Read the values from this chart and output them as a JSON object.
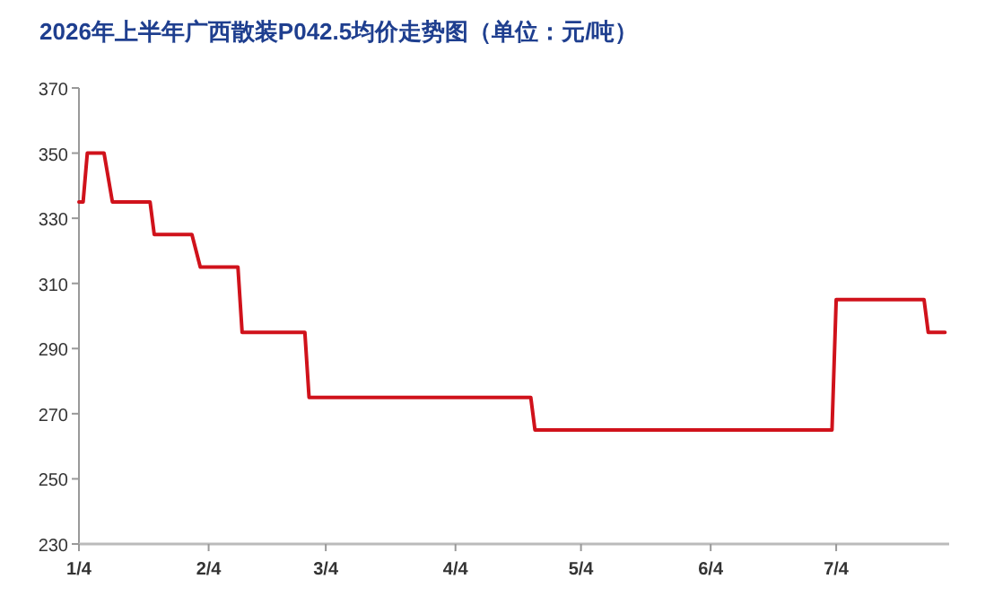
{
  "chart_data": {
    "type": "line",
    "title": "2026年上半年广西散装P042.5均价走势图（单位：元/吨）",
    "x": [
      "2026-01-04",
      "2026-01-05",
      "2026-01-06",
      "2026-01-10",
      "2026-01-12",
      "2026-01-21",
      "2026-01-22",
      "2026-01-31",
      "2026-02-02",
      "2026-02-11",
      "2026-02-12",
      "2026-02-27",
      "2026-02-28",
      "2026-04-22",
      "2026-04-23",
      "2026-07-03",
      "2026-07-04",
      "2026-07-25",
      "2026-07-26",
      "2026-07-30"
    ],
    "series": [
      {
        "color": "#d0121b",
        "values": [
          335,
          335,
          350,
          350,
          335,
          335,
          325,
          325,
          315,
          315,
          295,
          295,
          275,
          275,
          265,
          265,
          305,
          305,
          295,
          295
        ]
      }
    ],
    "xlim": [
      "2026-01-04",
      "2026-07-31"
    ],
    "xticks": [
      {
        "value": "2026-01-04",
        "label": "1/4"
      },
      {
        "value": "2026-02-04",
        "label": "2/4"
      },
      {
        "value": "2026-03-04",
        "label": "3/4"
      },
      {
        "value": "2026-04-04",
        "label": "4/4"
      },
      {
        "value": "2026-05-04",
        "label": "5/4"
      },
      {
        "value": "2026-06-04",
        "label": "6/4"
      },
      {
        "value": "2026-07-04",
        "label": "7/4"
      }
    ],
    "ylim": [
      230,
      370
    ],
    "yticks": [
      230,
      250,
      270,
      290,
      310,
      330,
      350,
      370
    ],
    "grid": false,
    "marker": "none",
    "line_style": "solid"
  }
}
